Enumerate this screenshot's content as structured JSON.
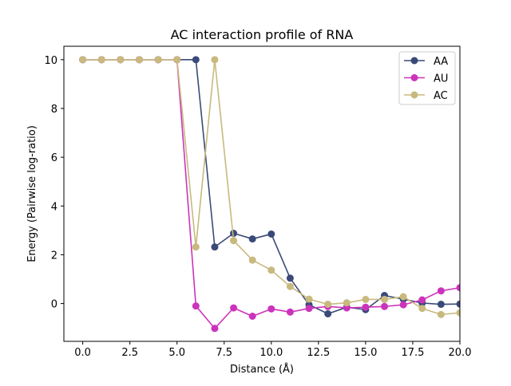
{
  "chart_data": {
    "type": "line",
    "title": "AC interaction profile of  RNA",
    "xlabel": "Distance (Å)",
    "ylabel": "Energy (Pairwise log-ratio)",
    "xlim": [
      -1.0,
      20.0
    ],
    "ylim": [
      -1.55,
      10.55
    ],
    "xticks": [
      0.0,
      2.5,
      5.0,
      7.5,
      10.0,
      12.5,
      15.0,
      17.5,
      20.0
    ],
    "xtick_labels": [
      "0.0",
      "2.5",
      "5.0",
      "7.5",
      "10.0",
      "12.5",
      "15.0",
      "17.5",
      "20.0"
    ],
    "yticks": [
      0,
      2,
      4,
      6,
      8,
      10
    ],
    "ytick_labels": [
      "0",
      "2",
      "4",
      "6",
      "8",
      "10"
    ],
    "grid": false,
    "legend_position": "top-right",
    "x": [
      0,
      1,
      2,
      3,
      4,
      5,
      6,
      7,
      8,
      9,
      10,
      11,
      12,
      13,
      14,
      15,
      16,
      17,
      18,
      19,
      20
    ],
    "series": [
      {
        "name": "AA",
        "color": "#3a4a78",
        "values": [
          10,
          10,
          10,
          10,
          10,
          10,
          10,
          2.32,
          2.88,
          2.65,
          2.85,
          1.04,
          -0.05,
          -0.42,
          -0.15,
          -0.25,
          0.33,
          0.18,
          0.02,
          -0.03,
          -0.02
        ]
      },
      {
        "name": "AU",
        "color": "#cc33bb",
        "values": [
          10,
          10,
          10,
          10,
          10,
          10,
          -0.1,
          -1.02,
          -0.18,
          -0.52,
          -0.22,
          -0.35,
          -0.2,
          -0.12,
          -0.18,
          -0.15,
          -0.12,
          -0.05,
          0.15,
          0.52,
          0.65
        ]
      },
      {
        "name": "AC",
        "color": "#c8b97e",
        "values": [
          10,
          10,
          10,
          10,
          10,
          10,
          2.32,
          10,
          2.58,
          1.78,
          1.37,
          0.7,
          0.18,
          -0.03,
          0.03,
          0.17,
          0.17,
          0.28,
          -0.2,
          -0.45,
          -0.38
        ]
      }
    ]
  }
}
